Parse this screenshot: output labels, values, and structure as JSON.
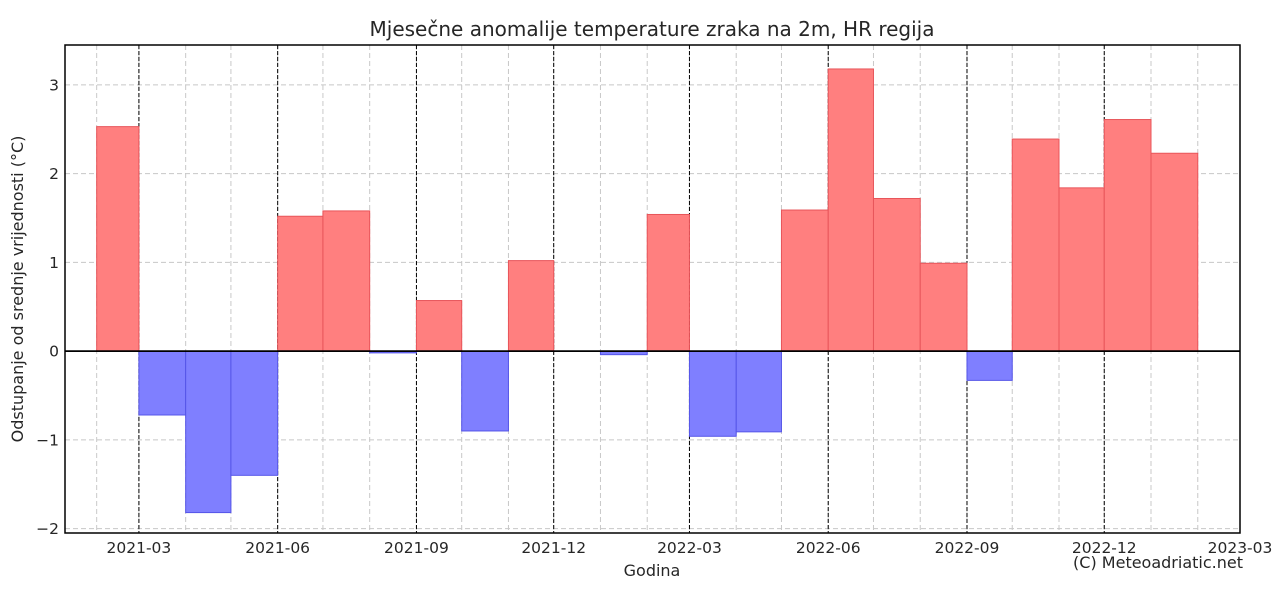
{
  "chart_data": {
    "type": "bar",
    "title": "Mjesečne anomalije temperature zraka na 2m, HR regija",
    "xlabel": "Godina",
    "ylabel": "Odstupanje od srednje vrijednosti (°C)",
    "copyright": "(C) Meteoadriatic.net",
    "xlim": [
      "2021-01-11",
      "2023-03-01"
    ],
    "ylim": [
      -2.05,
      3.45
    ],
    "y_ticks": [
      -2,
      -1,
      0,
      1,
      2,
      3
    ],
    "y_tick_labels": [
      "−2",
      "−1",
      "0",
      "1",
      "2",
      "3"
    ],
    "x_ticks": [
      "2021-03",
      "2021-06",
      "2021-09",
      "2021-12",
      "2022-03",
      "2022-06",
      "2022-09",
      "2022-12",
      "2023-03"
    ],
    "grid": true,
    "legend": "none",
    "positive_color": "#ff7f7f",
    "positive_edge": "#e8555a",
    "negative_color": "#7f7fff",
    "negative_edge": "#5555e8",
    "zero_line_color": "#000000",
    "series": [
      {
        "months": [
          "2021-02",
          "2021-03",
          "2021-04",
          "2021-05",
          "2021-06",
          "2021-07",
          "2021-08",
          "2021-09",
          "2021-10",
          "2021-11",
          "2021-12",
          "2022-01",
          "2022-02",
          "2022-03",
          "2022-04",
          "2022-05",
          "2022-06",
          "2022-07",
          "2022-08",
          "2022-09",
          "2022-10",
          "2022-11",
          "2022-12",
          "2023-01"
        ],
        "values": [
          2.53,
          -0.72,
          -1.82,
          -1.4,
          1.52,
          1.58,
          -0.02,
          0.57,
          -0.9,
          1.02,
          0.0,
          -0.04,
          1.54,
          -0.96,
          -0.91,
          1.59,
          3.18,
          1.72,
          0.99,
          -0.33,
          2.39,
          1.84,
          2.61,
          2.23
        ]
      }
    ]
  }
}
